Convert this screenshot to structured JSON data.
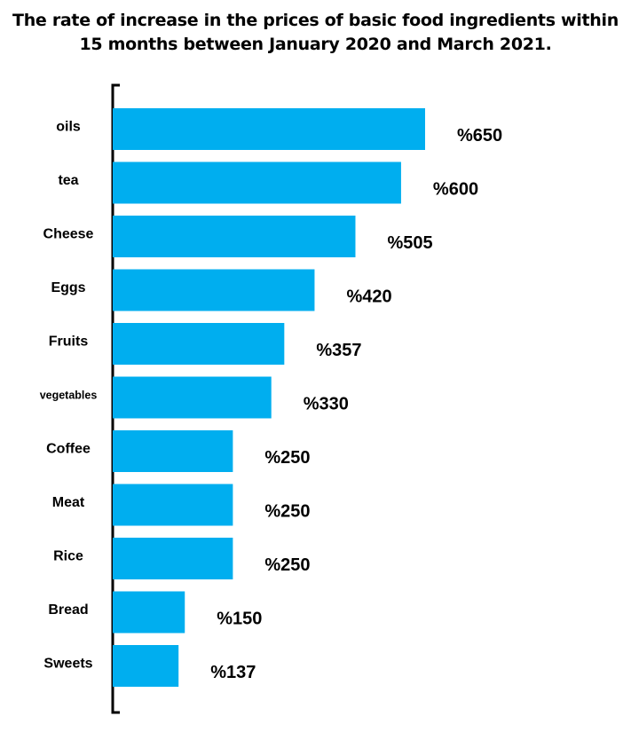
{
  "chart_data": {
    "type": "bar",
    "orientation": "horizontal",
    "title": "The rate of increase in the prices of basic food ingredients within 15 months between January 2020 and March 2021.",
    "categories": [
      "oils",
      "tea",
      "Cheese",
      "Eggs",
      "Fruits",
      "vegetables",
      "Coffee",
      "Meat",
      "Rice",
      "Bread",
      "Sweets"
    ],
    "values": [
      650,
      600,
      505,
      420,
      357,
      330,
      250,
      250,
      250,
      150,
      137
    ],
    "value_labels": [
      "%650",
      "%600",
      "%505",
      "%420",
      "%357",
      "%330",
      "%250",
      "%250",
      "%250",
      "%150",
      "%137"
    ],
    "xlim": [
      0,
      650
    ],
    "grid": false,
    "bar_color": "#00AEEF"
  }
}
